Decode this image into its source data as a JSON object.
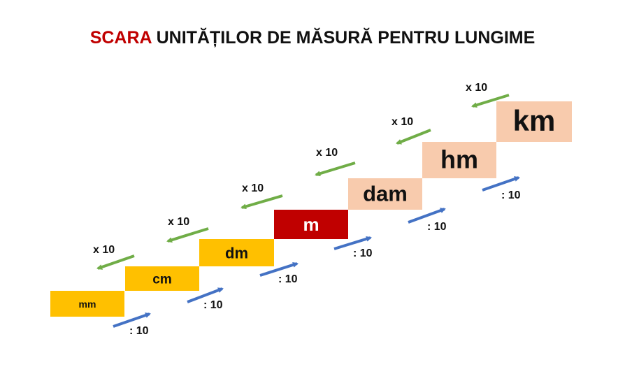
{
  "title": {
    "highlight": "SCARA",
    "rest": "UNITĂȚILOR DE MĂSURĂ PENTRU LUNGIME"
  },
  "steps": [
    {
      "label": "mm"
    },
    {
      "label": "cm"
    },
    {
      "label": "dm"
    },
    {
      "label": "m"
    },
    {
      "label": "dam"
    },
    {
      "label": "hm"
    },
    {
      "label": "km"
    }
  ],
  "multiply": [
    "x 10",
    "x 10",
    "x 10",
    "x 10",
    "x 10",
    "x 10"
  ],
  "divide": [
    ": 10",
    ": 10",
    ": 10",
    ": 10",
    ": 10",
    ": 10"
  ]
}
